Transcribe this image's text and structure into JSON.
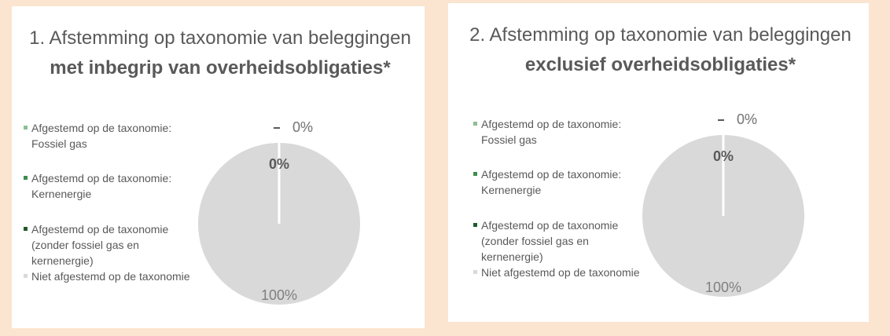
{
  "chart_data": [
    {
      "type": "pie",
      "title": {
        "text": "1. Afstemming op taxonomie van beleggingen",
        "bold": "met inbegrip van overheidsobligaties*"
      },
      "categories": [
        "Afgestemd op de taxonomie: Fossiel gas",
        "Afgestemd op de taxonomie: Kernenergie",
        "Afgestemd op de taxonomie (zonder fossiel gas en kernenergie)",
        "Niet afgestemd op de taxonomie"
      ],
      "values": [
        0,
        0,
        0,
        100
      ],
      "value_labels": [
        "0%",
        "0%",
        "0%",
        "100%"
      ],
      "colors": [
        "#8cbf94",
        "#3f8c4f",
        "#1f5a2c",
        "#d9d9d9"
      ]
    },
    {
      "type": "pie",
      "title": {
        "text": "2. Afstemming op taxonomie van beleggingen",
        "bold": "exclusief overheidsobligaties*"
      },
      "categories": [
        "Afgestemd op de taxonomie: Fossiel gas",
        "Afgestemd op de taxonomie: Kernenergie",
        "Afgestemd op de taxonomie (zonder fossiel gas en kernenergie)",
        "Niet afgestemd op de taxonomie"
      ],
      "values": [
        0,
        0,
        0,
        100
      ],
      "value_labels": [
        "0%",
        "0%",
        "0%",
        "100%"
      ],
      "colors": [
        "#8cbf94",
        "#3f8c4f",
        "#1f5a2c",
        "#d9d9d9"
      ]
    }
  ]
}
